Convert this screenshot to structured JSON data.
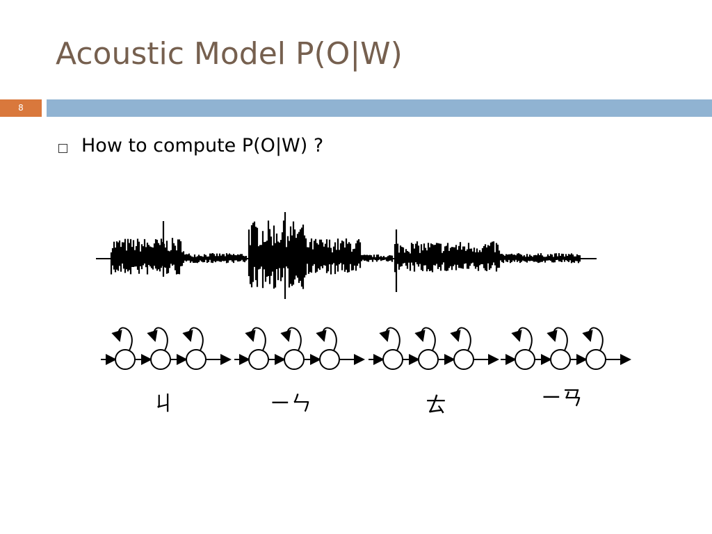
{
  "header": {
    "title": "Acoustic Model P(O|W)",
    "slide_number": "8"
  },
  "bullets": [
    "How to compute P(O|W) ?"
  ],
  "diagram": {
    "labels": [
      "ㄐ",
      "ㄧㄣ",
      "ㄊ",
      "ㄧㄢ"
    ]
  }
}
